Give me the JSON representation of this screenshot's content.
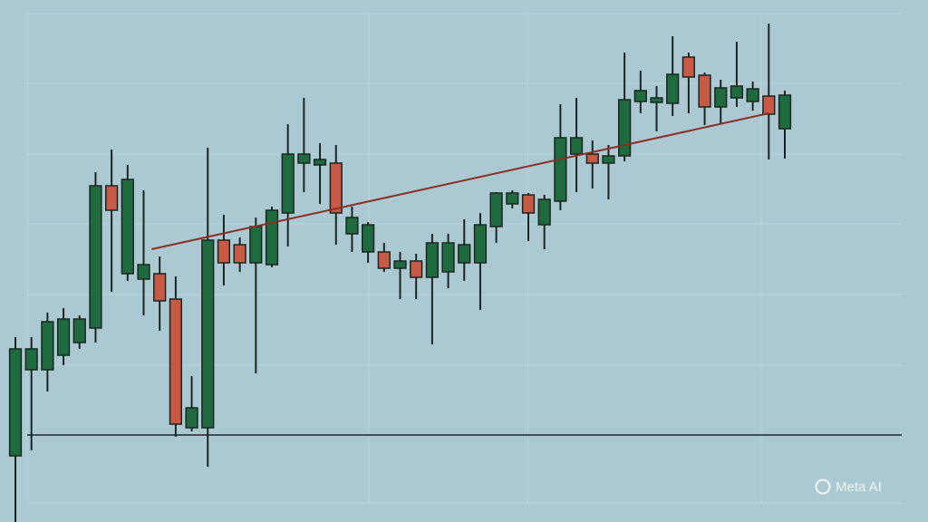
{
  "chart_data": {
    "type": "candlestick",
    "categories": [
      null,
      null,
      null,
      null,
      null,
      null,
      null,
      null,
      null,
      null,
      null,
      null,
      null,
      null,
      null,
      null,
      null,
      null,
      null,
      null,
      null,
      null,
      null,
      null,
      null,
      null,
      null,
      null,
      null,
      null,
      null,
      null,
      null,
      null,
      null,
      null,
      null,
      null,
      null,
      null,
      null,
      null,
      null,
      null,
      null,
      null,
      null,
      null,
      null
    ],
    "open": [
      73,
      168,
      168,
      184,
      198,
      214,
      371,
      274,
      268,
      274,
      246,
      104,
      104,
      311,
      306,
      286,
      284,
      341,
      396,
      394,
      396,
      318,
      298,
      298,
      280,
      288,
      270,
      276,
      286,
      286,
      326,
      351,
      361,
      328,
      354,
      406,
      406,
      396,
      404,
      464,
      463,
      462,
      513,
      493,
      458,
      468,
      464,
      470,
      434
    ],
    "close": [
      191,
      191,
      221,
      224,
      224,
      371,
      344,
      378,
      284,
      244,
      108,
      126,
      311,
      286,
      286,
      326,
      344,
      406,
      406,
      400,
      341,
      336,
      328,
      280,
      288,
      270,
      308,
      308,
      306,
      328,
      363,
      363,
      341,
      356,
      424,
      424,
      396,
      404,
      466,
      476,
      468,
      494,
      491,
      458,
      479,
      481,
      478,
      450,
      471
    ],
    "high": [
      204,
      204,
      231,
      236,
      228,
      386,
      411,
      394,
      366,
      293,
      271,
      161,
      413,
      339,
      314,
      336,
      348,
      439,
      468,
      418,
      416,
      348,
      331,
      308,
      298,
      296,
      318,
      318,
      334,
      341,
      364,
      366,
      363,
      361,
      461,
      468,
      421,
      416,
      518,
      498,
      481,
      536,
      518,
      496,
      488,
      530,
      486,
      550,
      476
    ],
    "low": [
      0,
      79,
      144,
      173,
      191,
      198,
      254,
      266,
      228,
      211,
      94,
      100,
      61,
      261,
      276,
      164,
      281,
      304,
      364,
      351,
      306,
      298,
      286,
      276,
      246,
      246,
      196,
      258,
      266,
      234,
      308,
      346,
      310,
      301,
      344,
      364,
      368,
      356,
      398,
      451,
      431,
      448,
      451,
      438,
      440,
      458,
      454,
      400,
      401
    ],
    "up_color": "#1f6b40",
    "down_color": "#c85a45",
    "trend_line": {
      "x": [
        8.5,
        47
      ],
      "values": [
        301,
        451
      ],
      "color": "#8b2e24"
    },
    "hline": {
      "value": 96,
      "color": "#222222"
    },
    "ylim": [
      0,
      576
    ],
    "grid": true,
    "watermark": "Meta AI"
  }
}
